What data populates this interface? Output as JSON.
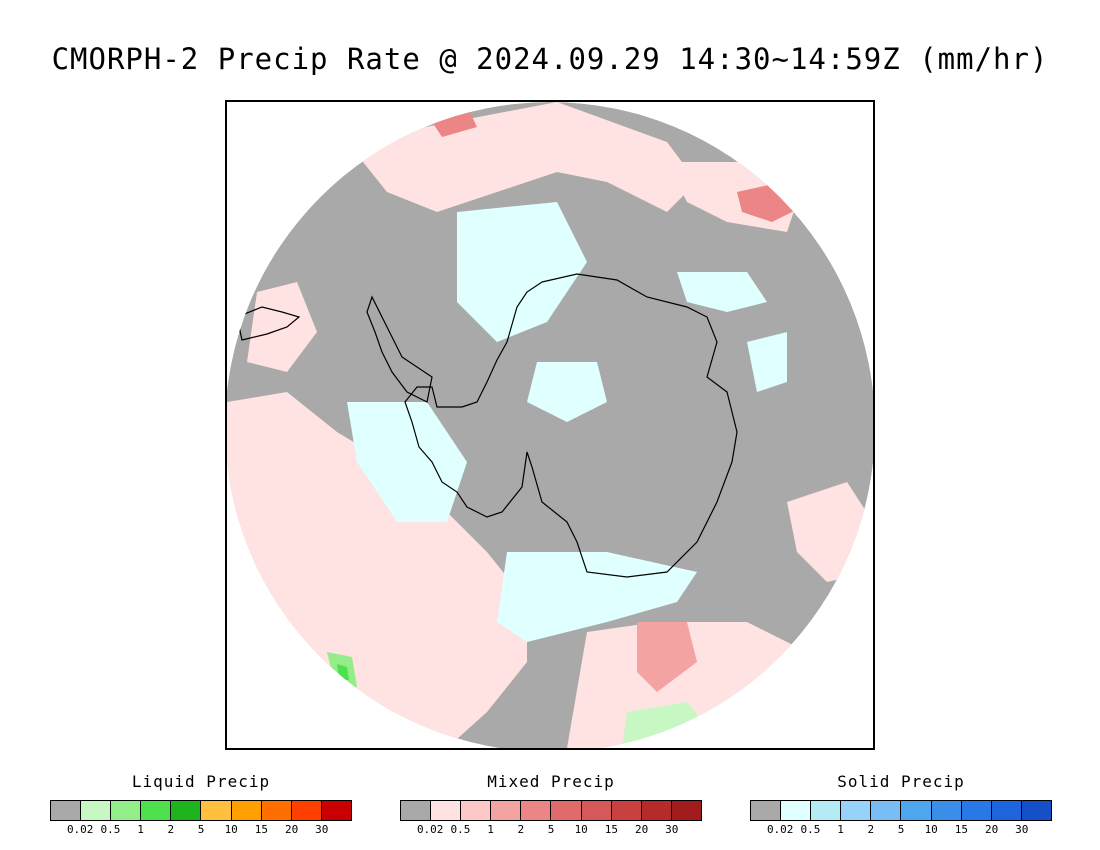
{
  "title": "CMORPH-2 Precip Rate @ 2024.09.29 14:30~14:59Z (mm/hr)",
  "map": {
    "projection": "south-polar-stereographic",
    "background_no_precip_color": "#a9a9a9",
    "coastline_color": "#000000"
  },
  "legends": [
    {
      "title": "Liquid Precip",
      "colors": [
        "#a9a9a9",
        "#c7f7c2",
        "#93ee8a",
        "#4fe04d",
        "#1eb41e",
        "#ffc040",
        "#ff9f00",
        "#ff6f00",
        "#ff3f00",
        "#c80000"
      ],
      "ticks": [
        "0.02",
        "0.5",
        "1",
        "2",
        "5",
        "10",
        "15",
        "20",
        "30"
      ]
    },
    {
      "title": "Mixed Precip",
      "colors": [
        "#a9a9a9",
        "#ffe2e2",
        "#ffc8c8",
        "#f4a3a3",
        "#ec8585",
        "#e06b6b",
        "#d75858",
        "#c84040",
        "#b52a2a",
        "#a01c1c"
      ],
      "ticks": [
        "0.02",
        "0.5",
        "1",
        "2",
        "5",
        "10",
        "15",
        "20",
        "30"
      ]
    },
    {
      "title": "Solid Precip",
      "colors": [
        "#a9a9a9",
        "#e0ffff",
        "#b4ecf6",
        "#96d2fa",
        "#78bef5",
        "#4ea6ee",
        "#3a8ee8",
        "#2878e6",
        "#1e64dc",
        "#1450c8"
      ],
      "ticks": [
        "0.02",
        "0.5",
        "1",
        "2",
        "5",
        "10",
        "15",
        "20",
        "30"
      ]
    }
  ]
}
